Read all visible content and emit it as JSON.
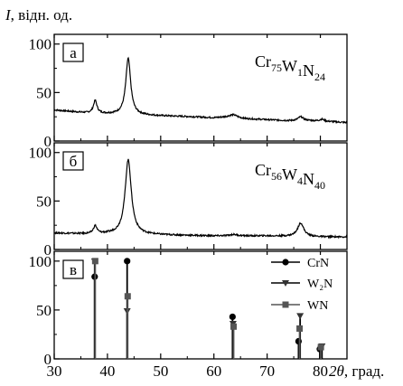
{
  "chart_data": {
    "type": "line",
    "ylabel": {
      "symbol": "I",
      "unit": ", відн. од."
    },
    "xlabel": {
      "symbol": "2θ",
      "unit": ", град."
    },
    "xlim": [
      30,
      85
    ],
    "xticks": [
      30,
      40,
      50,
      60,
      70,
      80
    ],
    "grid": false,
    "panels": [
      {
        "label": "а",
        "composition": [
          {
            "el": "Cr",
            "sub": "75"
          },
          {
            "el": "W",
            "sub": "1"
          },
          {
            "el": "N",
            "sub": "24"
          }
        ],
        "ylim": [
          0,
          110
        ],
        "yticks": [
          0,
          50,
          100
        ],
        "baseline": [
          [
            30,
            32
          ],
          [
            34,
            30
          ],
          [
            36,
            29
          ],
          [
            40,
            28
          ],
          [
            50,
            26
          ],
          [
            56,
            25
          ],
          [
            60,
            24
          ],
          [
            63,
            25
          ],
          [
            66,
            23
          ],
          [
            70,
            22
          ],
          [
            74,
            21
          ],
          [
            78,
            21
          ],
          [
            82,
            20
          ],
          [
            85,
            19
          ]
        ],
        "peaks": [
          {
            "x": 37.7,
            "h": 13,
            "w": 0.4
          },
          {
            "x": 43.9,
            "h": 58,
            "w": 0.55
          },
          {
            "x": 63.7,
            "h": 2.5,
            "w": 0.8
          },
          {
            "x": 76.3,
            "h": 4,
            "w": 0.6
          },
          {
            "x": 80.3,
            "h": 2,
            "w": 0.5
          }
        ]
      },
      {
        "label": "б",
        "composition": [
          {
            "el": "Cr",
            "sub": "56"
          },
          {
            "el": "W",
            "sub": "4"
          },
          {
            "el": "N",
            "sub": "40"
          }
        ],
        "ylim": [
          0,
          110
        ],
        "yticks": [
          0,
          50,
          100
        ],
        "baseline": [
          [
            30,
            17
          ],
          [
            36,
            16
          ],
          [
            40,
            16
          ],
          [
            50,
            15
          ],
          [
            60,
            14
          ],
          [
            70,
            14
          ],
          [
            80,
            13
          ],
          [
            85,
            13
          ]
        ],
        "peaks": [
          {
            "x": 37.7,
            "h": 8,
            "w": 0.4
          },
          {
            "x": 43.9,
            "h": 77,
            "w": 0.7
          },
          {
            "x": 63.7,
            "h": 1.5,
            "w": 0.8
          },
          {
            "x": 76.3,
            "h": 14,
            "w": 0.7
          }
        ]
      },
      {
        "label": "в",
        "ylim": [
          0,
          110
        ],
        "yticks": [
          0,
          50,
          100
        ],
        "legend_position": "top-right",
        "series": [
          {
            "name": "CrN",
            "marker": "circle",
            "x": [
              37.6,
              43.7,
              63.5,
              75.9,
              79.9
            ],
            "y": [
              84,
              100,
              43,
              18,
              10
            ]
          },
          {
            "name": "W₂N",
            "marker": "triangle-down",
            "x": [
              37.6,
              43.7,
              63.6,
              76.2,
              80.3
            ],
            "y": [
              100,
              49,
              36,
              44,
              13
            ]
          },
          {
            "name": "WN",
            "marker": "square",
            "x": [
              37.7,
              43.8,
              63.7,
              76.1,
              80.1
            ],
            "y": [
              100,
              64,
              33,
              31,
              12
            ]
          }
        ]
      }
    ]
  }
}
